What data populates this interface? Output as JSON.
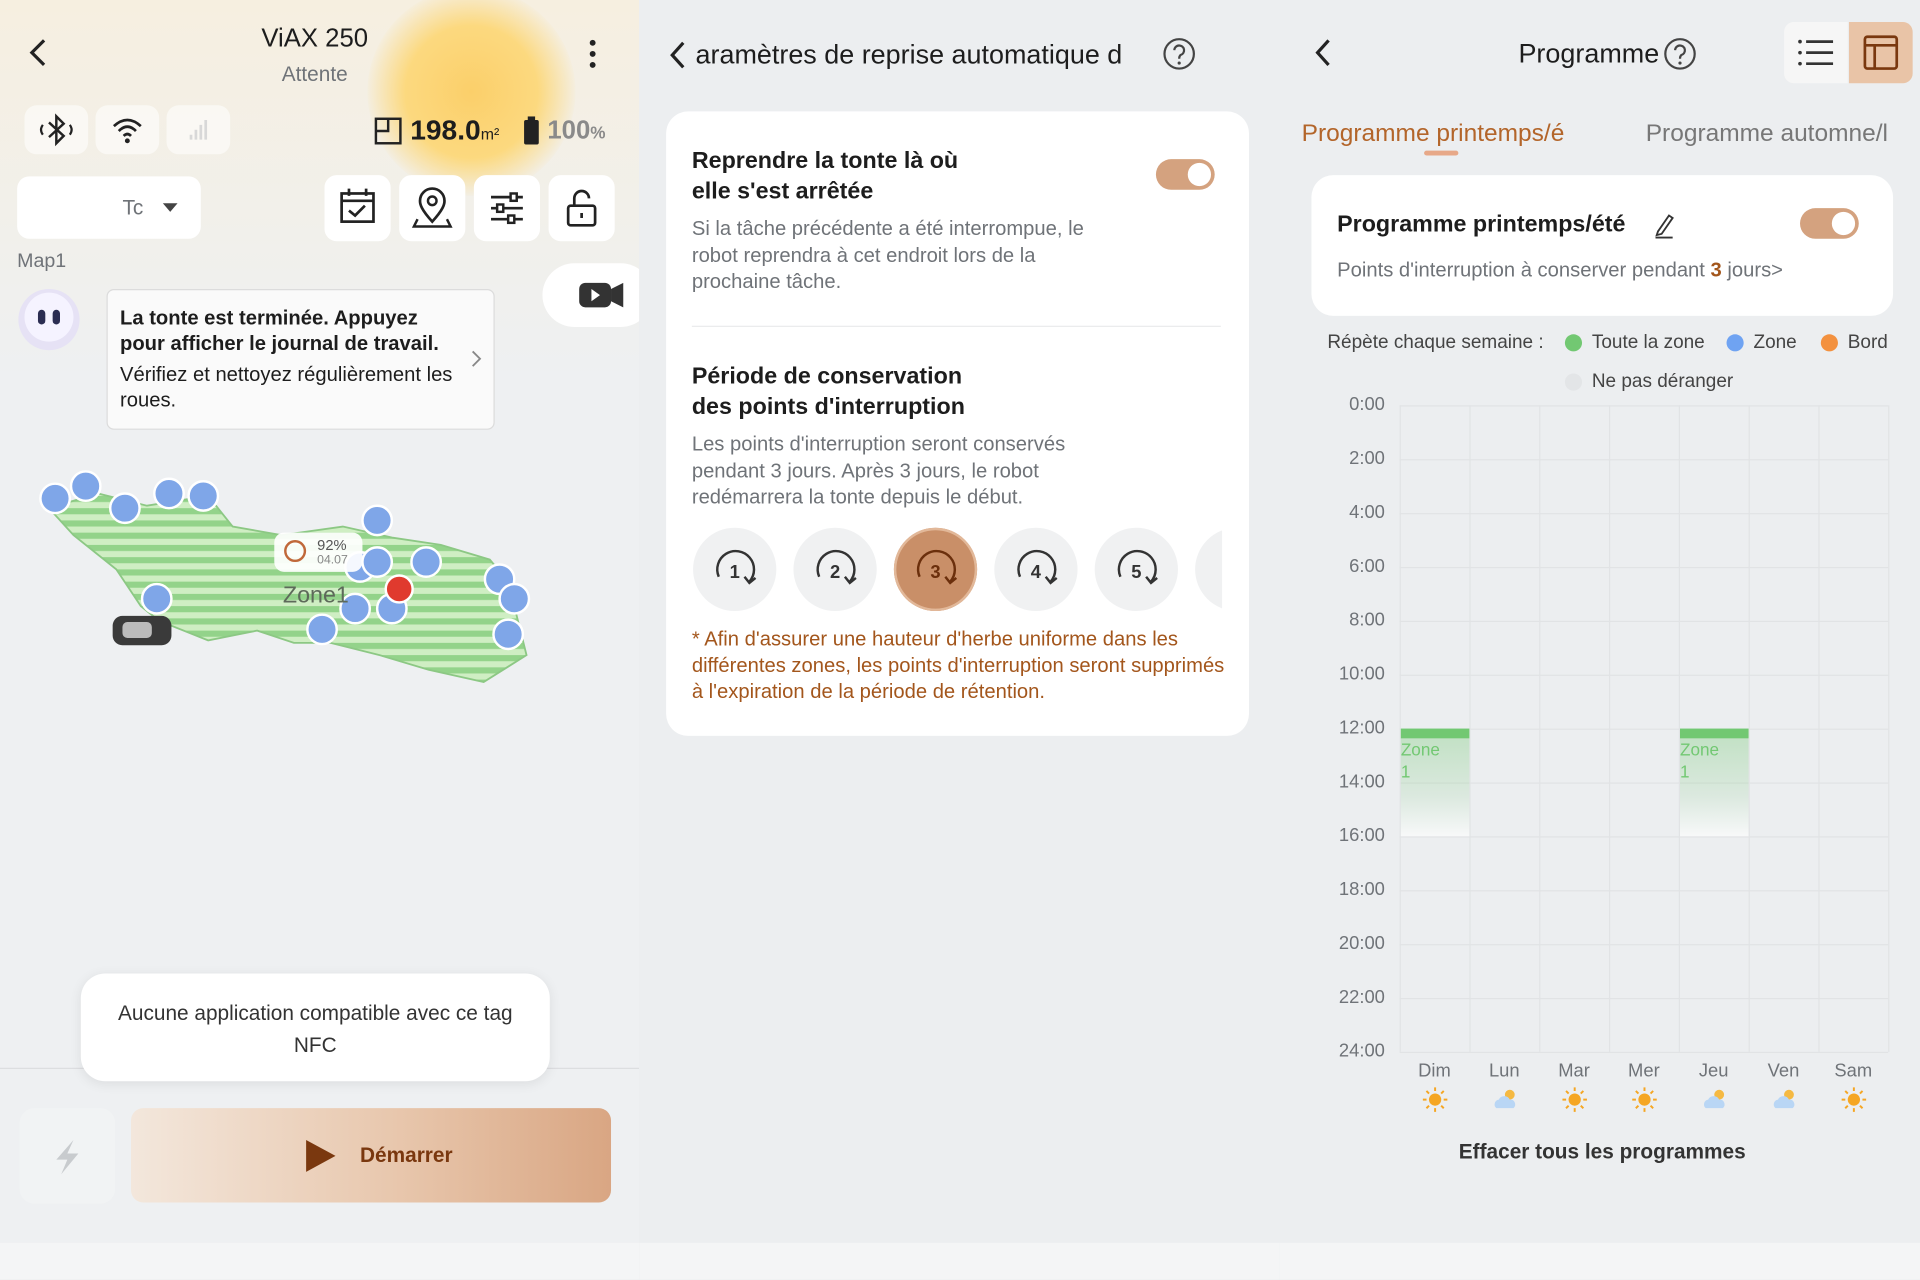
{
  "screen_home": {
    "title": "ViAX 250",
    "subtitle": "Attente",
    "area": "198.0",
    "area_unit": "m²",
    "battery": "100",
    "battery_unit": "%",
    "zone_selector": "Tc",
    "map_name": "Map1",
    "message": {
      "bold": "La tonte est terminée. Appuyez pour afficher le journal de travail.",
      "text": "Vérifiez et nettoyez régulièrement les roues."
    },
    "map": {
      "zone_label": "Zone1",
      "progress": "92%",
      "progress_date": "04.07"
    },
    "toast": "Aucune application compatible avec ce tag NFC",
    "start_button": "Démarrer"
  },
  "screen_resume": {
    "title": "aramètres de reprise automatique d",
    "resume": {
      "title": "Reprendre la tonte là où elle s'est arrêtée",
      "enabled": true,
      "description": "Si la tâche précédente a été interrompue, le robot reprendra à cet endroit lors de la prochaine tâche."
    },
    "retention": {
      "title": "Période de conservation des points d'interruption",
      "description": "Les points d'interruption seront conservés pendant 3 jours. Après 3 jours, le robot redémarrera la tonte depuis le début.",
      "options": [
        {
          "label": "1",
          "selected": false
        },
        {
          "label": "2",
          "selected": false
        },
        {
          "label": "3",
          "selected": true
        },
        {
          "label": "4",
          "selected": false
        },
        {
          "label": "5",
          "selected": false
        }
      ],
      "note": "* Afin d'assurer une hauteur d'herbe uniforme dans les différentes zones, les points d'interruption seront supprimés à l'expiration de la période de rétention."
    }
  },
  "screen_schedule": {
    "title": "Programme",
    "tabs": [
      "Programme printemps/é",
      "Programme automne/l"
    ],
    "card": {
      "title": "Programme printemps/été",
      "enabled": true,
      "text_before": "Points d'interruption à conserver pendant ",
      "days": "3",
      "text_after": " jours>"
    },
    "legend": {
      "label": "Répète chaque semaine :",
      "items": [
        {
          "name": "Toute la zone",
          "color": "#72c872"
        },
        {
          "name": "Zone",
          "color": "#6fa3f2"
        },
        {
          "name": "Bord",
          "color": "#f3913f"
        },
        {
          "name": "Ne pas déranger",
          "color": "#e3e5e7"
        }
      ]
    },
    "chart": {
      "ylim": [
        0,
        24
      ],
      "yticks": [
        {
          "value": 0,
          "label": "0:00"
        },
        {
          "value": 2,
          "label": "2:00"
        },
        {
          "value": 4,
          "label": "4:00"
        },
        {
          "value": 6,
          "label": "6:00"
        },
        {
          "value": 8,
          "label": "8:00"
        },
        {
          "value": 10,
          "label": "10:00"
        },
        {
          "value": 12,
          "label": "12:00"
        },
        {
          "value": 14,
          "label": "14:00"
        },
        {
          "value": 16,
          "label": "16:00"
        },
        {
          "value": 18,
          "label": "18:00"
        },
        {
          "value": 20,
          "label": "20:00"
        },
        {
          "value": 22,
          "label": "22:00"
        },
        {
          "value": 24,
          "label": "24:00"
        }
      ],
      "days": [
        {
          "name": "Dim",
          "weather": "sun",
          "blocks": [
            {
              "start": 12,
              "end": 16,
              "label": "Zone 1",
              "color": "#72c872"
            }
          ]
        },
        {
          "name": "Lun",
          "weather": "cloud",
          "blocks": []
        },
        {
          "name": "Mar",
          "weather": "sun",
          "blocks": []
        },
        {
          "name": "Mer",
          "weather": "sun",
          "blocks": []
        },
        {
          "name": "Jeu",
          "weather": "cloud",
          "blocks": [
            {
              "start": 12,
              "end": 16,
              "label": "Zone 1",
              "color": "#72c872"
            }
          ]
        },
        {
          "name": "Ven",
          "weather": "cloud",
          "blocks": []
        },
        {
          "name": "Sam",
          "weather": "sun",
          "blocks": []
        }
      ]
    },
    "clear_button": "Effacer tous les programmes"
  }
}
